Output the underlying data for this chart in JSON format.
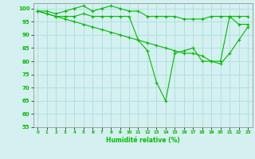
{
  "xlabel": "Humidité relative (%)",
  "bg_color": "#d5f0f0",
  "line_color": "#00bb00",
  "grid_color": "#aadddd",
  "ylim": [
    55,
    102
  ],
  "xlim": [
    -0.5,
    23.5
  ],
  "yticks": [
    55,
    60,
    65,
    70,
    75,
    80,
    85,
    90,
    95,
    100
  ],
  "xticks": [
    0,
    1,
    2,
    3,
    4,
    5,
    6,
    7,
    8,
    9,
    10,
    11,
    12,
    13,
    14,
    15,
    16,
    17,
    18,
    19,
    20,
    21,
    22,
    23
  ],
  "series": [
    [
      99,
      99,
      98,
      99,
      100,
      101,
      99,
      100,
      101,
      100,
      99,
      99,
      97,
      97,
      97,
      97,
      96,
      96,
      96,
      97,
      97,
      97,
      97,
      97
    ],
    [
      99,
      98,
      97,
      97,
      97,
      98,
      97,
      97,
      97,
      97,
      97,
      88,
      84,
      72,
      65,
      83,
      84,
      85,
      80,
      80,
      80,
      97,
      94,
      94
    ],
    [
      99,
      98,
      97,
      96,
      95,
      94,
      93,
      92,
      91,
      90,
      89,
      88,
      87,
      86,
      85,
      84,
      83,
      83,
      82,
      80,
      79,
      83,
      88,
      93
    ]
  ]
}
